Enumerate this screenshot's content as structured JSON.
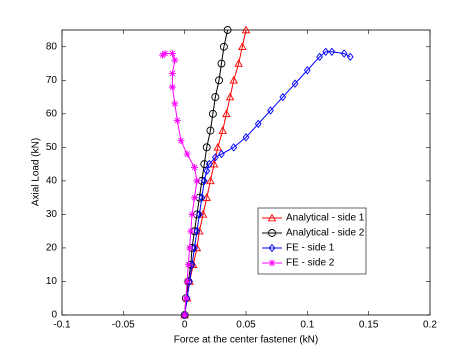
{
  "chart_data": {
    "type": "line",
    "x_label": "Force at the center fastener (kN)",
    "y_label": "Axial Load (kN)",
    "xlim": [
      -0.1,
      0.2
    ],
    "xticks": [
      -0.1,
      -0.05,
      0,
      0.05,
      0.1,
      0.15,
      0.2
    ],
    "ylim": [
      0,
      85
    ],
    "yticks": [
      0,
      10,
      20,
      30,
      40,
      50,
      60,
      70,
      80
    ],
    "legend": "lower right",
    "series": [
      {
        "name": "Analytical - side 1",
        "color": "#ff0000",
        "marker": "triangle",
        "x": [
          0,
          0.002,
          0.004,
          0.007,
          0.01,
          0.012,
          0.015,
          0.018,
          0.021,
          0.024,
          0.027,
          0.031,
          0.034,
          0.037,
          0.04,
          0.044,
          0.047,
          0.05
        ],
        "values": [
          0,
          5,
          10,
          15,
          20,
          25,
          30,
          35,
          40,
          45,
          50,
          55,
          60,
          65,
          70,
          75,
          80,
          85
        ]
      },
      {
        "name": "Analytical - side 2",
        "color": "#000000",
        "marker": "circle",
        "x": [
          0,
          0.001,
          0.003,
          0.005,
          0.006,
          0.008,
          0.01,
          0.012,
          0.014,
          0.016,
          0.018,
          0.021,
          0.023,
          0.025,
          0.028,
          0.03,
          0.032,
          0.035
        ],
        "values": [
          0,
          5,
          10,
          15,
          20,
          25,
          30,
          35,
          40,
          45,
          50,
          55,
          60,
          65,
          70,
          75,
          80,
          85
        ]
      },
      {
        "name": "FE - side 1",
        "color": "#0000ff",
        "marker": "diamond",
        "x": [
          0,
          0.002,
          0.004,
          0.006,
          0.008,
          0.01,
          0.012,
          0.014,
          0.016,
          0.018,
          0.02,
          0.025,
          0.03,
          0.04,
          0.05,
          0.06,
          0.07,
          0.08,
          0.09,
          0.1,
          0.11,
          0.115,
          0.12,
          0.13,
          0.135
        ],
        "values": [
          0,
          5,
          10,
          15,
          20,
          25,
          30,
          35,
          40,
          43,
          45,
          47,
          48,
          50,
          53,
          57,
          61,
          65,
          69,
          73,
          77,
          78.5,
          78.5,
          78,
          77
        ]
      },
      {
        "name": "FE - side 2",
        "color": "#ff00ff",
        "marker": "star",
        "x": [
          0,
          0.001,
          0.002,
          0.003,
          0.004,
          0.005,
          0.006,
          0.008,
          0.01,
          0.008,
          0.002,
          -0.003,
          -0.006,
          -0.008,
          -0.01,
          -0.01,
          -0.008,
          -0.01,
          -0.016,
          -0.018
        ],
        "values": [
          0,
          5,
          10,
          15,
          20,
          25,
          30,
          35,
          40,
          44,
          48,
          52,
          58,
          63,
          68,
          72,
          76,
          78,
          78,
          77.5
        ]
      }
    ]
  }
}
